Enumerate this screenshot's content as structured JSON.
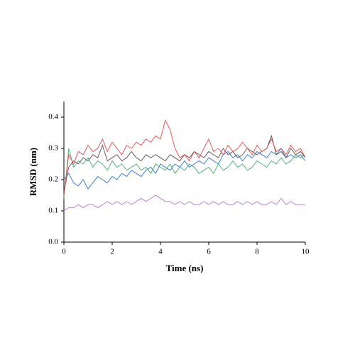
{
  "chart_data": {
    "type": "line",
    "xlabel": "Time (ns)",
    "ylabel": "RMSD (nm)",
    "x": [
      0,
      0.2,
      0.4,
      0.6,
      0.8,
      1,
      1.2,
      1.4,
      1.6,
      1.8,
      2,
      2.2,
      2.4,
      2.6,
      2.8,
      3,
      3.2,
      3.4,
      3.6,
      3.8,
      4,
      4.2,
      4.4,
      4.6,
      4.8,
      5,
      5.2,
      5.4,
      5.6,
      5.8,
      6,
      6.2,
      6.4,
      6.6,
      6.8,
      7,
      7.2,
      7.4,
      7.6,
      7.8,
      8,
      8.2,
      8.4,
      8.6,
      8.8,
      9,
      9.2,
      9.4,
      9.6,
      9.8,
      10
    ],
    "series": [
      {
        "color": "#b585d6",
        "values": [
          0.1,
          0.11,
          0.11,
          0.12,
          0.11,
          0.12,
          0.12,
          0.11,
          0.12,
          0.13,
          0.12,
          0.13,
          0.12,
          0.13,
          0.12,
          0.13,
          0.14,
          0.13,
          0.14,
          0.15,
          0.14,
          0.13,
          0.13,
          0.12,
          0.13,
          0.12,
          0.13,
          0.12,
          0.12,
          0.13,
          0.12,
          0.13,
          0.12,
          0.13,
          0.12,
          0.12,
          0.13,
          0.12,
          0.13,
          0.12,
          0.13,
          0.12,
          0.12,
          0.13,
          0.12,
          0.14,
          0.12,
          0.13,
          0.12,
          0.12,
          0.12
        ]
      },
      {
        "color": "#3a7fd6",
        "values": [
          0.2,
          0.22,
          0.19,
          0.18,
          0.2,
          0.17,
          0.19,
          0.21,
          0.2,
          0.19,
          0.21,
          0.2,
          0.22,
          0.21,
          0.23,
          0.22,
          0.21,
          0.23,
          0.24,
          0.22,
          0.25,
          0.24,
          0.23,
          0.25,
          0.24,
          0.26,
          0.24,
          0.25,
          0.26,
          0.25,
          0.27,
          0.26,
          0.25,
          0.28,
          0.29,
          0.27,
          0.28,
          0.26,
          0.28,
          0.27,
          0.29,
          0.28,
          0.27,
          0.29,
          0.28,
          0.3,
          0.27,
          0.28,
          0.27,
          0.28,
          0.26
        ]
      },
      {
        "color": "#4fb37a",
        "values": [
          0.14,
          0.3,
          0.24,
          0.26,
          0.25,
          0.27,
          0.24,
          0.26,
          0.25,
          0.23,
          0.26,
          0.24,
          0.25,
          0.23,
          0.24,
          0.25,
          0.23,
          0.24,
          0.22,
          0.25,
          0.24,
          0.23,
          0.25,
          0.22,
          0.24,
          0.23,
          0.25,
          0.24,
          0.22,
          0.23,
          0.24,
          0.22,
          0.25,
          0.23,
          0.24,
          0.26,
          0.24,
          0.25,
          0.23,
          0.24,
          0.26,
          0.25,
          0.24,
          0.26,
          0.25,
          0.27,
          0.25,
          0.26,
          0.28,
          0.27,
          0.28
        ]
      },
      {
        "color": "#6b5a5a",
        "values": [
          0.16,
          0.24,
          0.26,
          0.25,
          0.27,
          0.26,
          0.28,
          0.27,
          0.31,
          0.26,
          0.27,
          0.28,
          0.26,
          0.27,
          0.29,
          0.27,
          0.26,
          0.28,
          0.27,
          0.28,
          0.27,
          0.26,
          0.28,
          0.27,
          0.26,
          0.28,
          0.27,
          0.29,
          0.28,
          0.27,
          0.29,
          0.28,
          0.27,
          0.3,
          0.28,
          0.29,
          0.27,
          0.28,
          0.3,
          0.29,
          0.28,
          0.29,
          0.3,
          0.34,
          0.28,
          0.29,
          0.27,
          0.3,
          0.28,
          0.29,
          0.27
        ]
      },
      {
        "color": "#e05a5a",
        "values": [
          0.15,
          0.28,
          0.25,
          0.29,
          0.28,
          0.31,
          0.29,
          0.3,
          0.33,
          0.29,
          0.32,
          0.3,
          0.28,
          0.31,
          0.3,
          0.32,
          0.31,
          0.33,
          0.32,
          0.34,
          0.33,
          0.39,
          0.36,
          0.3,
          0.27,
          0.28,
          0.26,
          0.29,
          0.27,
          0.3,
          0.33,
          0.29,
          0.3,
          0.28,
          0.31,
          0.29,
          0.3,
          0.32,
          0.3,
          0.28,
          0.31,
          0.29,
          0.3,
          0.33,
          0.29,
          0.3,
          0.28,
          0.31,
          0.29,
          0.3,
          0.27
        ]
      }
    ],
    "xlim": [
      0,
      10
    ],
    "xticks": [
      0,
      2,
      4,
      6,
      8,
      10
    ],
    "ylim": [
      0,
      0.45
    ],
    "yticks": [
      {
        "value": 0,
        "label": "0.0"
      },
      {
        "value": 0.1,
        "label": "0.1"
      },
      {
        "value": 0.2,
        "label": "0.2"
      },
      {
        "value": 0.3,
        "label": "0.3"
      },
      {
        "value": 0.4,
        "label": "0.4"
      }
    ],
    "grid": false
  }
}
